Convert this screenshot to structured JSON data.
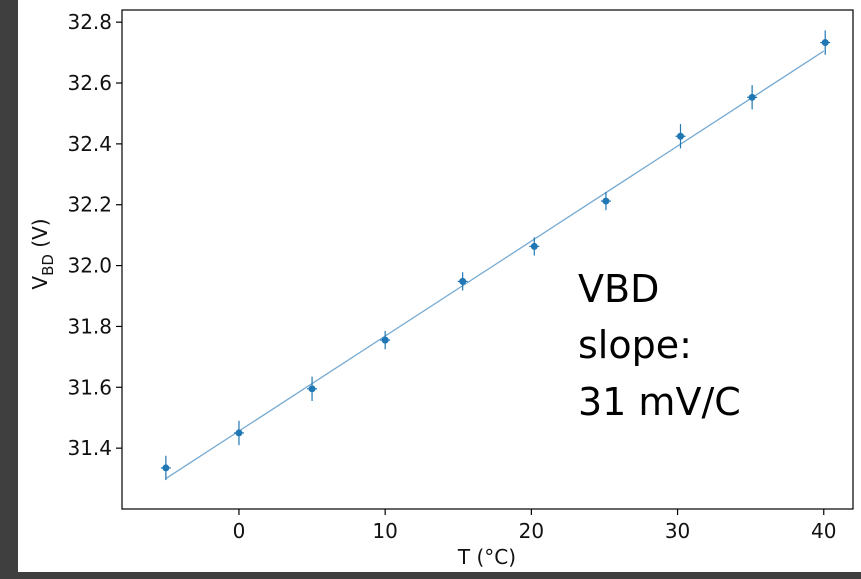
{
  "chart_data": {
    "type": "scatter",
    "xlabel": "T (°C)",
    "ylabel_main": "V",
    "ylabel_sub": "BD",
    "ylabel_unit": " (V)",
    "xlim": [
      -8,
      42
    ],
    "ylim": [
      31.2,
      32.84
    ],
    "xticks": [
      0,
      10,
      20,
      30,
      40
    ],
    "yticks": [
      31.4,
      31.6,
      31.8,
      32.0,
      32.2,
      32.4,
      32.6,
      32.8
    ],
    "grid": false,
    "series": [
      {
        "marker_color": "#1f77b4",
        "points": [
          {
            "x": -5,
            "y": 31.335,
            "yerr": 0.04
          },
          {
            "x": 0,
            "y": 31.45,
            "yerr": 0.04
          },
          {
            "x": 5,
            "y": 31.595,
            "yerr": 0.04
          },
          {
            "x": 10,
            "y": 31.755,
            "yerr": 0.03
          },
          {
            "x": 15.3,
            "y": 31.948,
            "yerr": 0.03
          },
          {
            "x": 20.2,
            "y": 32.063,
            "yerr": 0.03
          },
          {
            "x": 25.1,
            "y": 32.212,
            "yerr": 0.03
          },
          {
            "x": 30.2,
            "y": 32.425,
            "yerr": 0.04
          },
          {
            "x": 35.1,
            "y": 32.553,
            "yerr": 0.04
          },
          {
            "x": 40.1,
            "y": 32.733,
            "yerr": 0.04
          }
        ]
      }
    ],
    "fit_line": {
      "x": [
        -5,
        40
      ],
      "y": [
        31.3,
        32.705
      ],
      "color": "#76aad2"
    },
    "annotation": [
      "VBD",
      "slope:",
      "31 mV/C"
    ]
  }
}
